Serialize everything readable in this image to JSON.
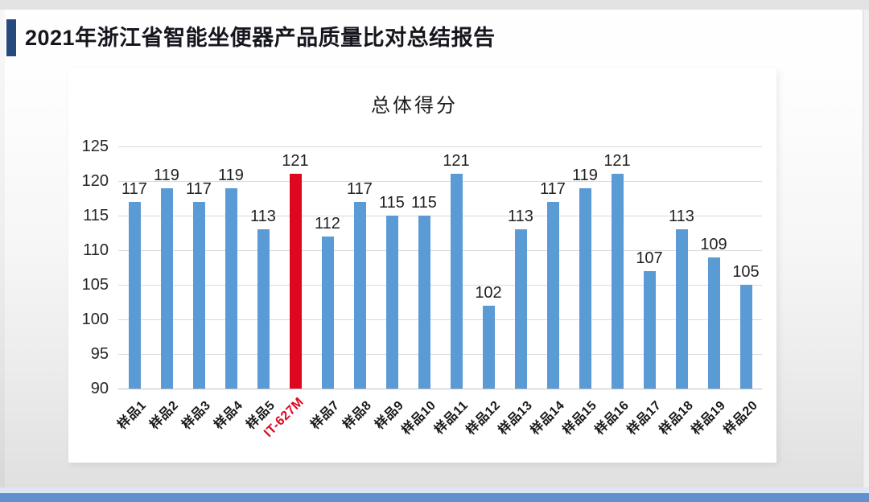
{
  "header": {
    "title": "2021年浙江省智能坐便器产品质量比对总结报告"
  },
  "theme": {
    "accent_color": "#264a7e",
    "bar_color": "#5b9bd5",
    "highlight_color": "#e00620",
    "footer_strip_color": "#dde7f4",
    "footer_bar_color": "#6191ca"
  },
  "chart_data": {
    "type": "bar",
    "title": "总体得分",
    "categories": [
      "样品1",
      "样品2",
      "样品3",
      "样品4",
      "样品5",
      "IT-627M",
      "样品7",
      "样品8",
      "样品9",
      "样品10",
      "样品11",
      "样品12",
      "样品13",
      "样品14",
      "样品15",
      "样品16",
      "样品17",
      "样品18",
      "样品19",
      "样品20"
    ],
    "values": [
      117,
      119,
      117,
      119,
      113,
      121,
      112,
      117,
      115,
      115,
      121,
      102,
      113,
      117,
      119,
      121,
      107,
      113,
      109,
      105
    ],
    "highlight_index": 5,
    "highlight_label": "IT-627M",
    "xlabel": "",
    "ylabel": "",
    "ylim": [
      90,
      125
    ],
    "yticks": [
      90,
      95,
      100,
      105,
      110,
      115,
      120,
      125
    ],
    "grid": "horizontal",
    "legend": "none",
    "value_labels": true
  }
}
